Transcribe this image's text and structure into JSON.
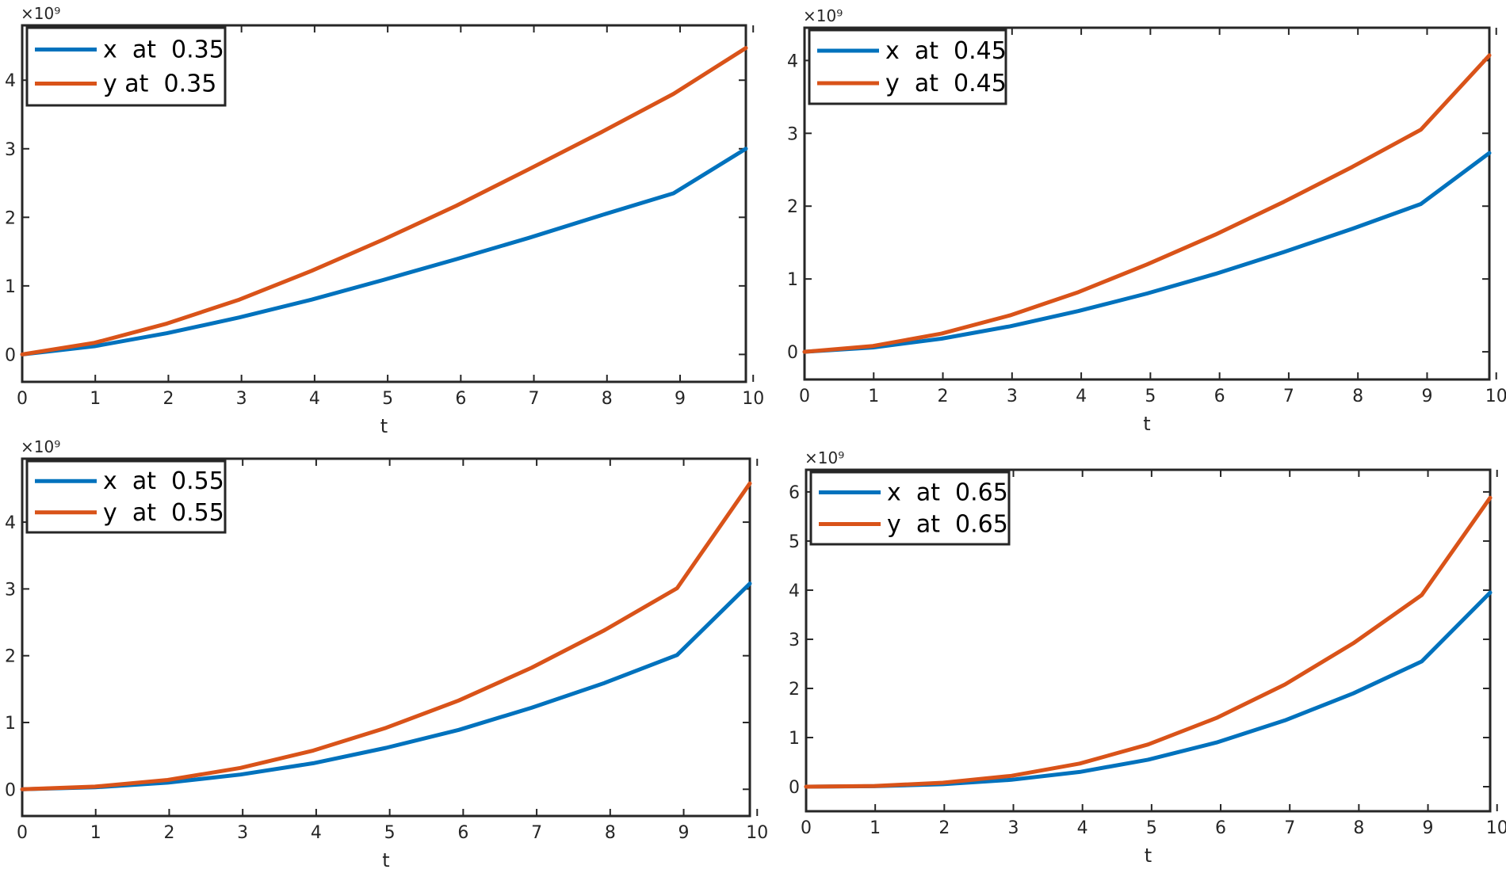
{
  "chart_data": [
    {
      "type": "line",
      "title": "",
      "xlabel": "t",
      "ylabel": "",
      "xlim": [
        0,
        9.9
      ],
      "ylim": [
        -0.4,
        4.8
      ],
      "x_ticks": [
        "0",
        "1",
        "2",
        "3",
        "4",
        "5",
        "6",
        "7",
        "8",
        "9",
        "10"
      ],
      "y_ticks": [
        "0",
        "1",
        "2",
        "3",
        "4"
      ],
      "y_exponent": "×10⁹",
      "legend_position": "top-left",
      "series": [
        {
          "name": "x  at  0.35",
          "color": "#0072BD",
          "x": [
            0,
            0.99,
            1.98,
            2.97,
            3.96,
            4.95,
            5.94,
            6.93,
            7.92,
            8.91,
            9.9
          ],
          "y": [
            0,
            0.12,
            0.31,
            0.54,
            0.8,
            1.09,
            1.39,
            1.7,
            2.03,
            2.35,
            3.0
          ]
        },
        {
          "name": "y at  0.35",
          "color": "#D95319",
          "x": [
            0,
            0.99,
            1.98,
            2.97,
            3.96,
            4.95,
            5.94,
            6.93,
            7.92,
            8.91,
            9.9
          ],
          "y": [
            0,
            0.17,
            0.45,
            0.8,
            1.22,
            1.68,
            2.17,
            2.7,
            3.24,
            3.8,
            4.47
          ]
        }
      ]
    },
    {
      "type": "line",
      "title": "",
      "xlabel": "t",
      "ylabel": "",
      "xlim": [
        0,
        9.9
      ],
      "ylim": [
        -0.38,
        4.45
      ],
      "x_ticks": [
        "0",
        "1",
        "2",
        "3",
        "4",
        "5",
        "6",
        "7",
        "8",
        "9",
        "10"
      ],
      "y_ticks": [
        "0",
        "1",
        "2",
        "3",
        "4"
      ],
      "y_exponent": "×10⁹",
      "legend_position": "top-left",
      "series": [
        {
          "name": "x  at  0.45",
          "color": "#0072BD",
          "x": [
            0,
            0.99,
            1.98,
            2.97,
            3.96,
            4.95,
            5.94,
            6.93,
            7.92,
            8.91,
            9.9
          ],
          "y": [
            0,
            0.06,
            0.18,
            0.35,
            0.56,
            0.8,
            1.07,
            1.37,
            1.69,
            2.03,
            2.73
          ]
        },
        {
          "name": "y  at  0.45",
          "color": "#D95319",
          "x": [
            0,
            0.99,
            1.98,
            2.97,
            3.96,
            4.95,
            5.94,
            6.93,
            7.92,
            8.91,
            9.9
          ],
          "y": [
            0,
            0.08,
            0.25,
            0.5,
            0.82,
            1.2,
            1.61,
            2.06,
            2.54,
            3.05,
            4.07
          ]
        }
      ]
    },
    {
      "type": "line",
      "title": "",
      "xlabel": "t",
      "ylabel": "",
      "xlim": [
        0,
        9.9
      ],
      "ylim": [
        -0.4,
        4.95
      ],
      "x_ticks": [
        "0",
        "1",
        "2",
        "3",
        "4",
        "5",
        "6",
        "7",
        "8",
        "9",
        "10"
      ],
      "y_ticks": [
        "0",
        "1",
        "2",
        "3",
        "4"
      ],
      "y_exponent": "×10⁹",
      "legend_position": "top-left",
      "series": [
        {
          "name": "x  at  0.55",
          "color": "#0072BD",
          "x": [
            0,
            0.99,
            1.98,
            2.97,
            3.96,
            4.95,
            5.94,
            6.93,
            7.92,
            8.91,
            9.9
          ],
          "y": [
            0,
            0.03,
            0.1,
            0.22,
            0.39,
            0.62,
            0.89,
            1.22,
            1.59,
            2.01,
            3.08
          ]
        },
        {
          "name": "y  at  0.55",
          "color": "#D95319",
          "x": [
            0,
            0.99,
            1.98,
            2.97,
            3.96,
            4.95,
            5.94,
            6.93,
            7.92,
            8.91,
            9.9
          ],
          "y": [
            0,
            0.04,
            0.14,
            0.32,
            0.58,
            0.92,
            1.33,
            1.82,
            2.38,
            3.01,
            4.58
          ]
        }
      ]
    },
    {
      "type": "line",
      "title": "",
      "xlabel": "t",
      "ylabel": "",
      "xlim": [
        0,
        9.9
      ],
      "ylim": [
        -0.5,
        6.45
      ],
      "x_ticks": [
        "0",
        "1",
        "2",
        "3",
        "4",
        "5",
        "6",
        "7",
        "8",
        "9",
        "10"
      ],
      "y_ticks": [
        "0",
        "1",
        "2",
        "3",
        "4",
        "5",
        "6"
      ],
      "y_exponent": "×10⁹",
      "legend_position": "top-left",
      "series": [
        {
          "name": "x  at  0.65",
          "color": "#0072BD",
          "x": [
            0,
            0.99,
            1.98,
            2.97,
            3.96,
            4.95,
            5.94,
            6.93,
            7.92,
            8.91,
            9.9
          ],
          "y": [
            0,
            0.01,
            0.05,
            0.14,
            0.3,
            0.55,
            0.9,
            1.35,
            1.9,
            2.55,
            3.95
          ]
        },
        {
          "name": "y  at  0.65",
          "color": "#D95319",
          "x": [
            0,
            0.99,
            1.98,
            2.97,
            3.96,
            4.95,
            5.94,
            6.93,
            7.92,
            8.91,
            9.9
          ],
          "y": [
            0,
            0.015,
            0.08,
            0.22,
            0.47,
            0.86,
            1.4,
            2.08,
            2.92,
            3.9,
            5.88
          ]
        }
      ]
    }
  ]
}
